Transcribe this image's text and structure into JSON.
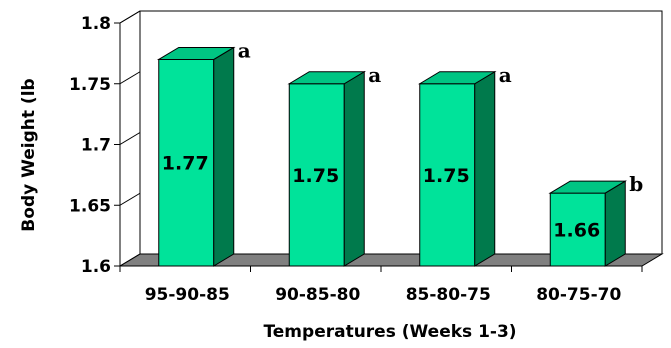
{
  "chart_data": {
    "type": "bar",
    "title": "",
    "xlabel": "Temperatures (Weeks 1-3)",
    "ylabel": "Body Weight (lb",
    "ylim": [
      1.6,
      1.8
    ],
    "yticks": [
      "1.6",
      "1.65",
      "1.7",
      "1.75",
      "1.8"
    ],
    "categories": [
      "95-90-85",
      "90-85-80",
      "85-80-75",
      "80-75-70"
    ],
    "values": [
      1.77,
      1.75,
      1.75,
      1.66
    ],
    "value_labels": [
      "1.77",
      "1.75",
      "1.75",
      "1.66"
    ],
    "significance_letters": [
      "a",
      "a",
      "a",
      "b"
    ],
    "grid": false,
    "style": "3d-column",
    "colors": {
      "bar_front": "#00e39a",
      "bar_side": "#007a4c",
      "bar_top": "#00c583",
      "floor": "#808080"
    }
  }
}
